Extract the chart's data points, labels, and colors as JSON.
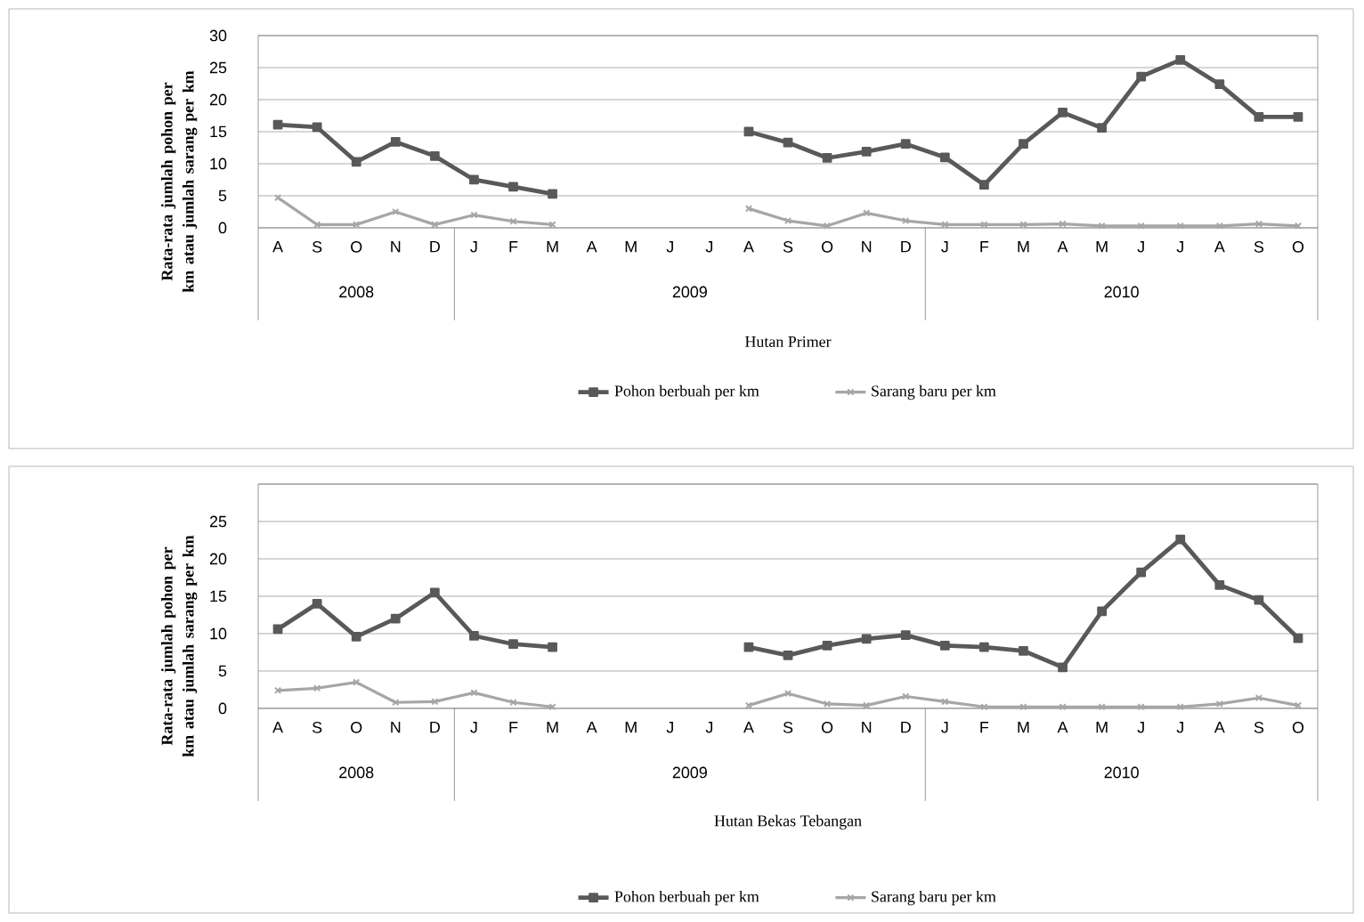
{
  "chart_data": [
    {
      "type": "line",
      "xlabel": "Hutan Primer",
      "ylabel": "Rata-rata jumlah pohon per km atau jumlah sarang per km",
      "categories": [
        "A",
        "S",
        "O",
        "N",
        "D",
        "J",
        "F",
        "M",
        "A",
        "M",
        "J",
        "J",
        "A",
        "S",
        "O",
        "N",
        "D",
        "J",
        "F",
        "M",
        "A",
        "M",
        "J",
        "J",
        "A",
        "S",
        "O"
      ],
      "series": [
        {
          "name": "Pohon berbuah per km",
          "color": "#595959",
          "marker": "square",
          "values": [
            16.1,
            15.7,
            10.3,
            13.4,
            11.2,
            7.5,
            6.4,
            5.3,
            null,
            null,
            null,
            null,
            15,
            13.3,
            10.9,
            11.9,
            13.1,
            11,
            6.7,
            13.1,
            18,
            15.6,
            23.6,
            26.2,
            22.4,
            17.3,
            17.3
          ]
        },
        {
          "name": "Sarang baru per km",
          "color": "#a6a6a6",
          "marker": "cross",
          "values": [
            4.7,
            0.5,
            0.5,
            2.5,
            0.5,
            2,
            1,
            0.5,
            null,
            null,
            null,
            null,
            3,
            1.1,
            0.3,
            2.3,
            1.1,
            0.5,
            0.5,
            0.5,
            0.6,
            0.3,
            0.3,
            0.3,
            0.3,
            0.6,
            0.3
          ]
        }
      ],
      "ylim": [
        0,
        30
      ],
      "yticks": [
        0,
        5,
        10,
        15,
        20,
        25,
        30
      ],
      "grid": "y",
      "legend": "bottom",
      "annotations": [
        "2008",
        "2009",
        "2010"
      ]
    },
    {
      "type": "line",
      "xlabel": "Hutan Bekas Tebangan",
      "ylabel": "Rata-rata jumlah pohon per km atau jumlah sarang per km",
      "categories": [
        "A",
        "S",
        "O",
        "N",
        "D",
        "J",
        "F",
        "M",
        "A",
        "M",
        "J",
        "J",
        "A",
        "S",
        "O",
        "N",
        "D",
        "J",
        "F",
        "M",
        "A",
        "M",
        "J",
        "J",
        "A",
        "S",
        "O"
      ],
      "series": [
        {
          "name": "Pohon berbuah per km",
          "color": "#595959",
          "marker": "square",
          "values": [
            10.6,
            14,
            9.6,
            12,
            15.5,
            9.7,
            8.6,
            8.2,
            null,
            null,
            null,
            null,
            8.2,
            7.1,
            8.4,
            9.3,
            9.8,
            8.4,
            8.2,
            7.7,
            5.5,
            13,
            18.2,
            22.6,
            16.5,
            14.5,
            9.4
          ]
        },
        {
          "name": "Sarang baru per km",
          "color": "#a6a6a6",
          "marker": "cross",
          "values": [
            2.4,
            2.7,
            3.5,
            0.8,
            0.9,
            2.1,
            0.8,
            0.2,
            null,
            null,
            null,
            null,
            0.4,
            2,
            0.6,
            0.4,
            1.6,
            0.9,
            0.2,
            0.2,
            0.2,
            0.2,
            0.2,
            0.2,
            0.6,
            1.4,
            0.4
          ]
        }
      ],
      "ylim": [
        0,
        30
      ],
      "yticks": [
        0,
        5,
        10,
        15,
        20,
        25,
        {
          "value": 30,
          "label": null
        }
      ],
      "grid": "y",
      "legend": "bottom",
      "annotations": [
        "2008",
        "2009",
        "2010"
      ]
    }
  ]
}
